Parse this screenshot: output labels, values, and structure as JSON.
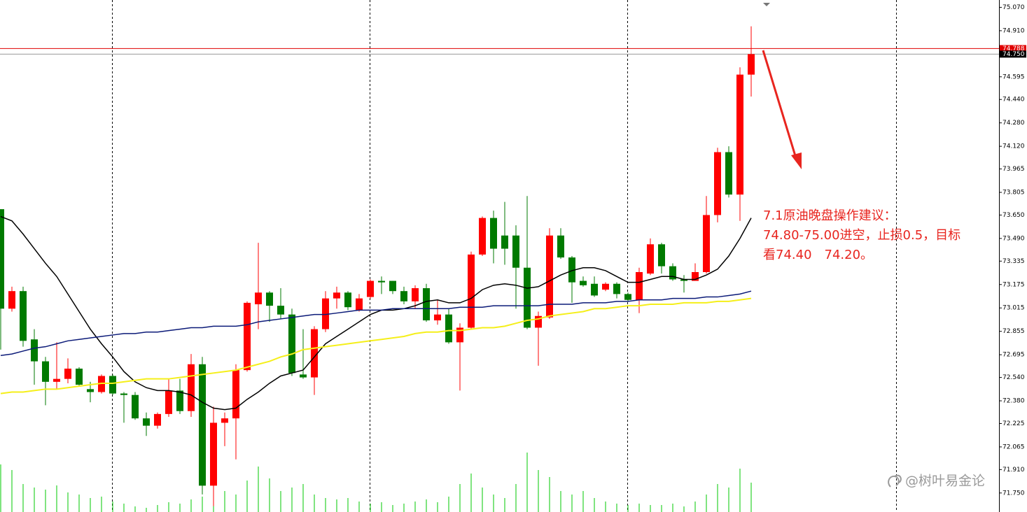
{
  "chart_data": {
    "type": "candlestick",
    "ylim": [
      71.62,
      75.12
    ],
    "yticks": [
      {
        "value": 75.07,
        "label": "75.070"
      },
      {
        "value": 74.91,
        "label": "74.910"
      },
      {
        "value": 74.595,
        "label": "74.595"
      },
      {
        "value": 74.44,
        "label": "74.440"
      },
      {
        "value": 74.28,
        "label": "74.280"
      },
      {
        "value": 74.12,
        "label": "74.120"
      },
      {
        "value": 73.965,
        "label": "73.965"
      },
      {
        "value": 73.805,
        "label": "73.805"
      },
      {
        "value": 73.65,
        "label": "73.650"
      },
      {
        "value": 73.49,
        "label": "73.490"
      },
      {
        "value": 73.335,
        "label": "73.335"
      },
      {
        "value": 73.175,
        "label": "73.175"
      },
      {
        "value": 73.015,
        "label": "73.015"
      },
      {
        "value": 72.855,
        "label": "72.855"
      },
      {
        "value": 72.695,
        "label": "72.695"
      },
      {
        "value": 72.54,
        "label": "72.540"
      },
      {
        "value": 72.38,
        "label": "72.380"
      },
      {
        "value": 72.225,
        "label": "72.225"
      },
      {
        "value": 72.065,
        "label": "72.065"
      },
      {
        "value": 71.91,
        "label": "71.910"
      },
      {
        "value": 71.75,
        "label": "71.750"
      }
    ],
    "up_color": "#ff0000",
    "down_color": "#007a00",
    "open": [
      73.69,
      73.01,
      73.13,
      72.8,
      72.65,
      72.51,
      72.53,
      72.6,
      72.46,
      72.44,
      72.55,
      72.43,
      72.42,
      72.26,
      72.21,
      72.29,
      72.45,
      72.31,
      72.63,
      71.8,
      72.23,
      72.26,
      72.59,
      73.04,
      73.12,
      73.03,
      72.97,
      72.56,
      72.54,
      72.87,
      73.08,
      73.12,
      73.0,
      73.09,
      73.2,
      73.2,
      73.13,
      73.06,
      73.15,
      72.93,
      72.97,
      72.78,
      72.88,
      73.38,
      73.63,
      73.51,
      73.51,
      73.29,
      72.88,
      72.95,
      73.51,
      73.36,
      73.2,
      73.18,
      73.14,
      73.18,
      73.11,
      73.07,
      73.25,
      73.45,
      73.3,
      73.21,
      73.2,
      73.26,
      73.65,
      74.08,
      73.79,
      74.61
    ],
    "high": [
      73.69,
      73.16,
      73.16,
      72.87,
      72.68,
      72.78,
      72.67,
      72.61,
      72.51,
      72.56,
      72.56,
      72.44,
      72.44,
      72.3,
      72.3,
      72.53,
      72.53,
      72.7,
      72.68,
      72.34,
      72.3,
      72.63,
      73.06,
      73.46,
      73.13,
      73.15,
      73.01,
      72.87,
      72.89,
      73.13,
      73.16,
      73.13,
      73.11,
      73.21,
      73.23,
      73.2,
      73.16,
      73.17,
      73.18,
      73.07,
      73.01,
      72.91,
      73.4,
      73.64,
      73.68,
      73.74,
      73.58,
      73.78,
      72.99,
      73.56,
      73.56,
      73.37,
      73.23,
      73.23,
      73.19,
      73.19,
      73.12,
      73.29,
      73.49,
      73.46,
      73.32,
      73.24,
      73.32,
      73.78,
      74.11,
      74.12,
      74.66,
      74.94
    ],
    "low": [
      72.73,
      72.99,
      72.75,
      72.49,
      72.35,
      72.46,
      72.5,
      72.48,
      72.37,
      72.43,
      72.42,
      72.23,
      72.25,
      72.14,
      72.19,
      72.27,
      72.29,
      72.27,
      71.74,
      71.66,
      72.07,
      71.98,
      72.58,
      72.87,
      72.92,
      72.94,
      72.55,
      72.53,
      72.42,
      72.85,
      73.01,
      73.0,
      72.99,
      73.08,
      73.11,
      73.11,
      73.04,
      73.01,
      72.92,
      72.9,
      72.77,
      72.45,
      72.87,
      73.37,
      73.32,
      73.31,
      73.01,
      72.87,
      72.62,
      72.94,
      73.35,
      73.05,
      73.16,
      73.09,
      73.13,
      73.08,
      73.06,
      72.98,
      73.24,
      73.25,
      73.2,
      73.12,
      73.2,
      73.25,
      73.6,
      73.77,
      73.61,
      74.46
    ],
    "close": [
      73.01,
      73.13,
      72.79,
      72.65,
      72.51,
      72.53,
      72.6,
      72.49,
      72.44,
      72.55,
      72.43,
      72.42,
      72.26,
      72.21,
      72.29,
      72.45,
      72.31,
      72.63,
      71.8,
      72.23,
      72.26,
      72.59,
      73.05,
      73.12,
      73.03,
      72.97,
      72.57,
      72.54,
      72.87,
      73.08,
      73.12,
      73.02,
      73.08,
      73.2,
      73.19,
      73.13,
      73.06,
      73.15,
      72.93,
      72.97,
      72.78,
      72.88,
      73.38,
      73.63,
      73.42,
      73.42,
      73.29,
      72.88,
      72.96,
      73.51,
      73.36,
      73.19,
      73.17,
      73.1,
      73.18,
      73.11,
      73.07,
      73.26,
      73.45,
      73.3,
      73.21,
      73.2,
      73.26,
      73.65,
      74.08,
      73.79,
      74.61,
      74.75
    ],
    "volume": [
      68,
      60,
      40,
      35,
      32,
      38,
      28,
      25,
      20,
      22,
      15,
      12,
      8,
      6,
      10,
      14,
      12,
      18,
      22,
      40,
      30,
      25,
      45,
      65,
      48,
      30,
      35,
      40,
      25,
      20,
      18,
      20,
      15,
      12,
      14,
      10,
      12,
      15,
      18,
      14,
      22,
      40,
      55,
      35,
      25,
      20,
      40,
      85,
      60,
      50,
      30,
      25,
      30,
      20,
      15,
      12,
      10,
      12,
      10,
      10,
      12,
      8,
      15,
      25,
      40,
      35,
      62,
      42
    ],
    "volume_color": "#00c800",
    "series": [
      {
        "color": "#000000",
        "values": [
          73.64,
          73.61,
          73.52,
          73.42,
          73.32,
          73.23,
          73.11,
          72.99,
          72.87,
          72.77,
          72.68,
          72.58,
          72.51,
          72.47,
          72.45,
          72.45,
          72.44,
          72.42,
          72.37,
          72.33,
          72.32,
          72.33,
          72.39,
          72.44,
          72.5,
          72.55,
          72.57,
          72.59,
          72.68,
          72.77,
          72.82,
          72.87,
          72.92,
          72.97,
          73.0,
          73.0,
          73.01,
          73.03,
          73.06,
          73.07,
          73.05,
          73.05,
          73.08,
          73.14,
          73.17,
          73.18,
          73.17,
          73.15,
          73.16,
          73.2,
          73.24,
          73.27,
          73.29,
          73.29,
          73.27,
          73.23,
          73.19,
          73.19,
          73.21,
          73.23,
          73.23,
          73.21,
          73.21,
          73.24,
          73.28,
          73.37,
          73.49,
          73.63
        ]
      },
      {
        "color": "#0b1a78",
        "values": [
          72.69,
          72.7,
          72.72,
          72.74,
          72.75,
          72.77,
          72.79,
          72.8,
          72.81,
          72.82,
          72.83,
          72.84,
          72.84,
          72.85,
          72.85,
          72.86,
          72.87,
          72.88,
          72.88,
          72.89,
          72.89,
          72.89,
          72.9,
          72.92,
          72.93,
          72.94,
          72.95,
          72.96,
          72.97,
          72.97,
          72.98,
          72.99,
          73.0,
          73.0,
          73.0,
          73.01,
          73.01,
          73.01,
          73.01,
          73.01,
          73.01,
          73.02,
          73.02,
          73.02,
          73.03,
          73.03,
          73.03,
          73.03,
          73.03,
          73.04,
          73.04,
          73.04,
          73.05,
          73.05,
          73.05,
          73.06,
          73.06,
          73.07,
          73.07,
          73.07,
          73.08,
          73.08,
          73.08,
          73.09,
          73.09,
          73.1,
          73.11,
          73.13
        ]
      },
      {
        "color": "#f5ef1a",
        "values": [
          72.43,
          72.44,
          72.44,
          72.45,
          72.46,
          72.46,
          72.47,
          72.48,
          72.49,
          72.5,
          72.5,
          72.51,
          72.52,
          72.53,
          72.53,
          72.53,
          72.54,
          72.55,
          72.56,
          72.57,
          72.58,
          72.59,
          72.61,
          72.63,
          72.65,
          72.68,
          72.7,
          72.73,
          72.74,
          72.75,
          72.76,
          72.77,
          72.78,
          72.79,
          72.8,
          72.81,
          72.82,
          72.84,
          72.85,
          72.85,
          72.86,
          72.86,
          72.87,
          72.88,
          72.88,
          72.89,
          72.91,
          72.93,
          72.94,
          72.96,
          72.97,
          72.98,
          72.99,
          73.01,
          73.01,
          73.02,
          73.03,
          73.03,
          73.04,
          73.04,
          73.04,
          73.05,
          73.05,
          73.05,
          73.06,
          73.06,
          73.07,
          73.08
        ]
      }
    ],
    "bid_line": {
      "value": 74.788,
      "label": "74.788",
      "color": "#e00000"
    },
    "last_price": {
      "value": 74.75,
      "label": "74.750",
      "color": "#000000"
    },
    "annotations": [
      "7.1原油晚盘操作建议：",
      "74.80-75.00进空，止损0.5，目标",
      "看74.40　74.20。"
    ],
    "watermark": "@树叶易金论"
  }
}
